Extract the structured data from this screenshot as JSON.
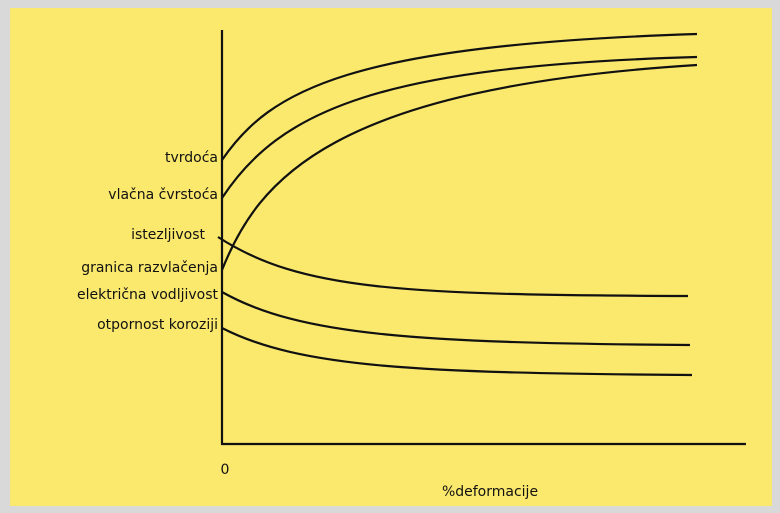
{
  "labels": [
    "tvrdoća",
    "vlačna čvrstoća",
    "istezljivost",
    "granica razvlačenja",
    "električna vodljivost",
    "otpornost koroziji"
  ],
  "axis": {
    "origin": "0",
    "x_label": "%deformacije"
  }
}
